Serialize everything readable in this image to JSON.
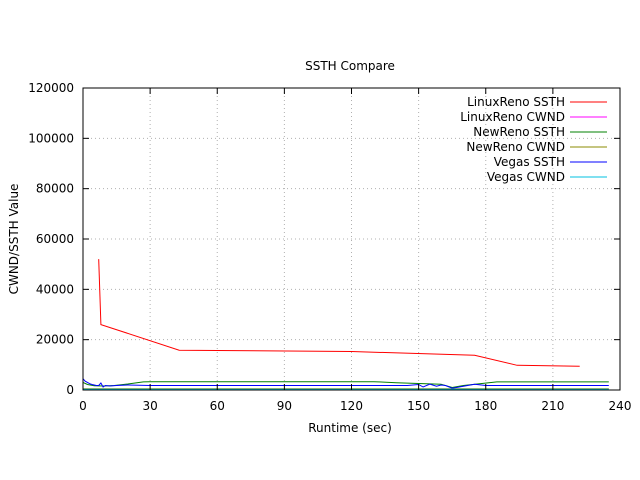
{
  "chart_data": {
    "type": "line",
    "title": "SSTH Compare",
    "xlabel": "Runtime (sec)",
    "ylabel": "CWND/SSTH Value",
    "xlim": [
      0,
      240
    ],
    "ylim": [
      0,
      120000
    ],
    "xticks": [
      0,
      30,
      60,
      90,
      120,
      150,
      180,
      210,
      240
    ],
    "yticks": [
      0,
      20000,
      40000,
      60000,
      80000,
      100000,
      120000
    ],
    "grid": true,
    "legend_position": "top-right",
    "series": [
      {
        "name": "LinuxReno SSTH",
        "color": "#ff0000",
        "x": [
          7,
          8,
          43,
          120,
          175,
          194,
          222
        ],
        "y": [
          52000,
          26000,
          15800,
          15300,
          13800,
          9800,
          9400
        ]
      },
      {
        "name": "LinuxReno CWND",
        "color": "#ff00ff",
        "x": [
          0,
          235
        ],
        "y": [
          0,
          0
        ]
      },
      {
        "name": "NewReno SSTH",
        "color": "#008000",
        "x": [
          0,
          2,
          5,
          9,
          14,
          20,
          27,
          30,
          130,
          140,
          150,
          160,
          165,
          170,
          185,
          235
        ],
        "y": [
          3000,
          2200,
          1700,
          1600,
          1800,
          2400,
          3200,
          3300,
          3300,
          2900,
          2600,
          2300,
          1000,
          1800,
          3200,
          3200
        ]
      },
      {
        "name": "NewReno CWND",
        "color": "#8b8b00",
        "x": [
          0,
          235
        ],
        "y": [
          500,
          500
        ]
      },
      {
        "name": "Vegas SSTH",
        "color": "#0000ff",
        "x": [
          0,
          1,
          2,
          3,
          4,
          5,
          6,
          7,
          8,
          9,
          10,
          12,
          15,
          20,
          30,
          60,
          120,
          145,
          150,
          152,
          155,
          158,
          160,
          162,
          165,
          170,
          175,
          180,
          235
        ],
        "y": [
          4500,
          3500,
          3000,
          2500,
          2200,
          2000,
          1800,
          1800,
          2800,
          1200,
          1800,
          1600,
          1800,
          2000,
          1800,
          1800,
          1800,
          1800,
          2200,
          1200,
          2300,
          1500,
          2000,
          1800,
          700,
          1500,
          2300,
          1800,
          1800
        ]
      },
      {
        "name": "Vegas CWND",
        "color": "#00c0e0",
        "x": [
          0,
          235
        ],
        "y": [
          300,
          300
        ]
      }
    ]
  }
}
